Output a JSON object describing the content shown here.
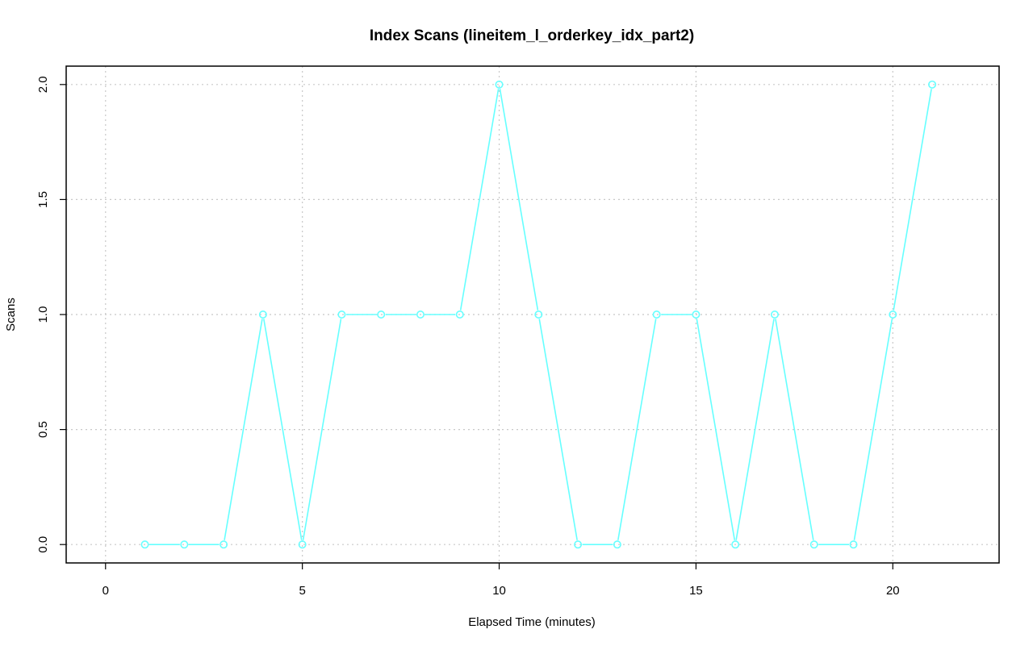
{
  "chart_data": {
    "type": "line",
    "title": "Index Scans (lineitem_l_orderkey_idx_part2)",
    "xlabel": "Elapsed Time (minutes)",
    "ylabel": "Scans",
    "xlim": [
      -1,
      22.7
    ],
    "ylim": [
      -0.08,
      2.08
    ],
    "xticks": [
      0,
      5,
      10,
      15,
      20
    ],
    "xtick_labels": [
      "0",
      "5",
      "10",
      "15",
      "20"
    ],
    "yticks": [
      0.0,
      0.5,
      1.0,
      1.5,
      2.0
    ],
    "ytick_labels": [
      "0.0",
      "0.5",
      "1.0",
      "1.5",
      "2.0"
    ],
    "grid": true,
    "color": "#66ffff",
    "marker": "open-circle",
    "series": [
      {
        "x": [
          1,
          2,
          3,
          4,
          5,
          6,
          7,
          8,
          9,
          10,
          11,
          12,
          13,
          14,
          15,
          16,
          17,
          18,
          19,
          20,
          21
        ],
        "values": [
          0,
          0,
          0,
          1,
          0,
          1,
          1,
          1,
          1,
          2,
          1,
          0,
          0,
          1,
          1,
          0,
          1,
          0,
          0,
          1,
          2
        ]
      }
    ]
  }
}
